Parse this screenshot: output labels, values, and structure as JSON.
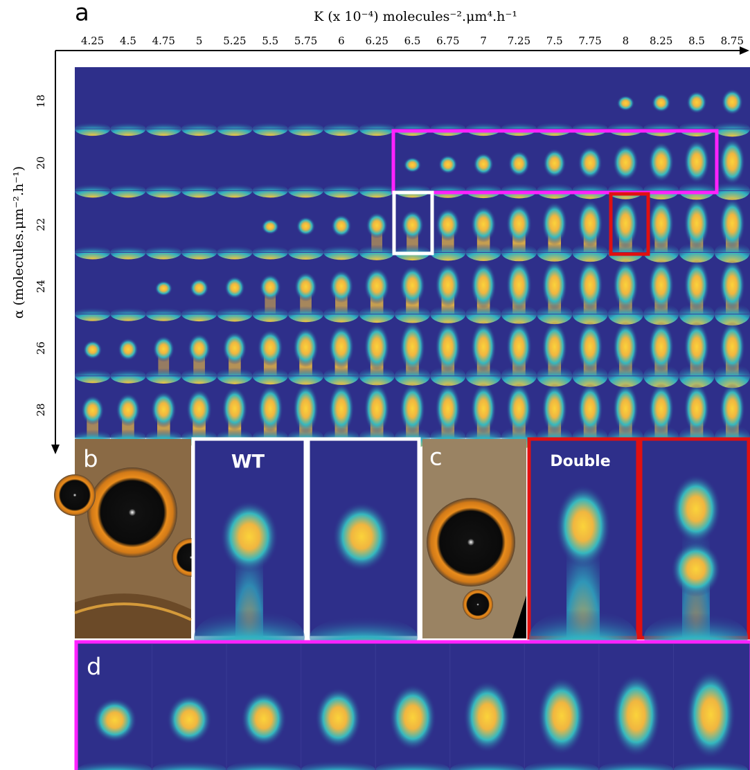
{
  "panels": {
    "a": "a",
    "b": "b",
    "c": "c",
    "d": "d"
  },
  "x_axis": {
    "label": "K (x 10⁻⁴) molecules⁻².μm⁴.h⁻¹",
    "ticks": [
      "4.25",
      "4.5",
      "4.75",
      "5",
      "5.25",
      "5.5",
      "5.75",
      "6",
      "6.25",
      "6.5",
      "6.75",
      "7",
      "7.25",
      "7.5",
      "7.75",
      "8",
      "8.25",
      "8.5",
      "8.75"
    ]
  },
  "y_axis": {
    "label": "α (molecules.μm⁻².h⁻¹)",
    "ticks": [
      "18",
      "20",
      "22",
      "24",
      "26",
      "28"
    ]
  },
  "insets": {
    "wt": "WT",
    "double": "Double"
  }
}
